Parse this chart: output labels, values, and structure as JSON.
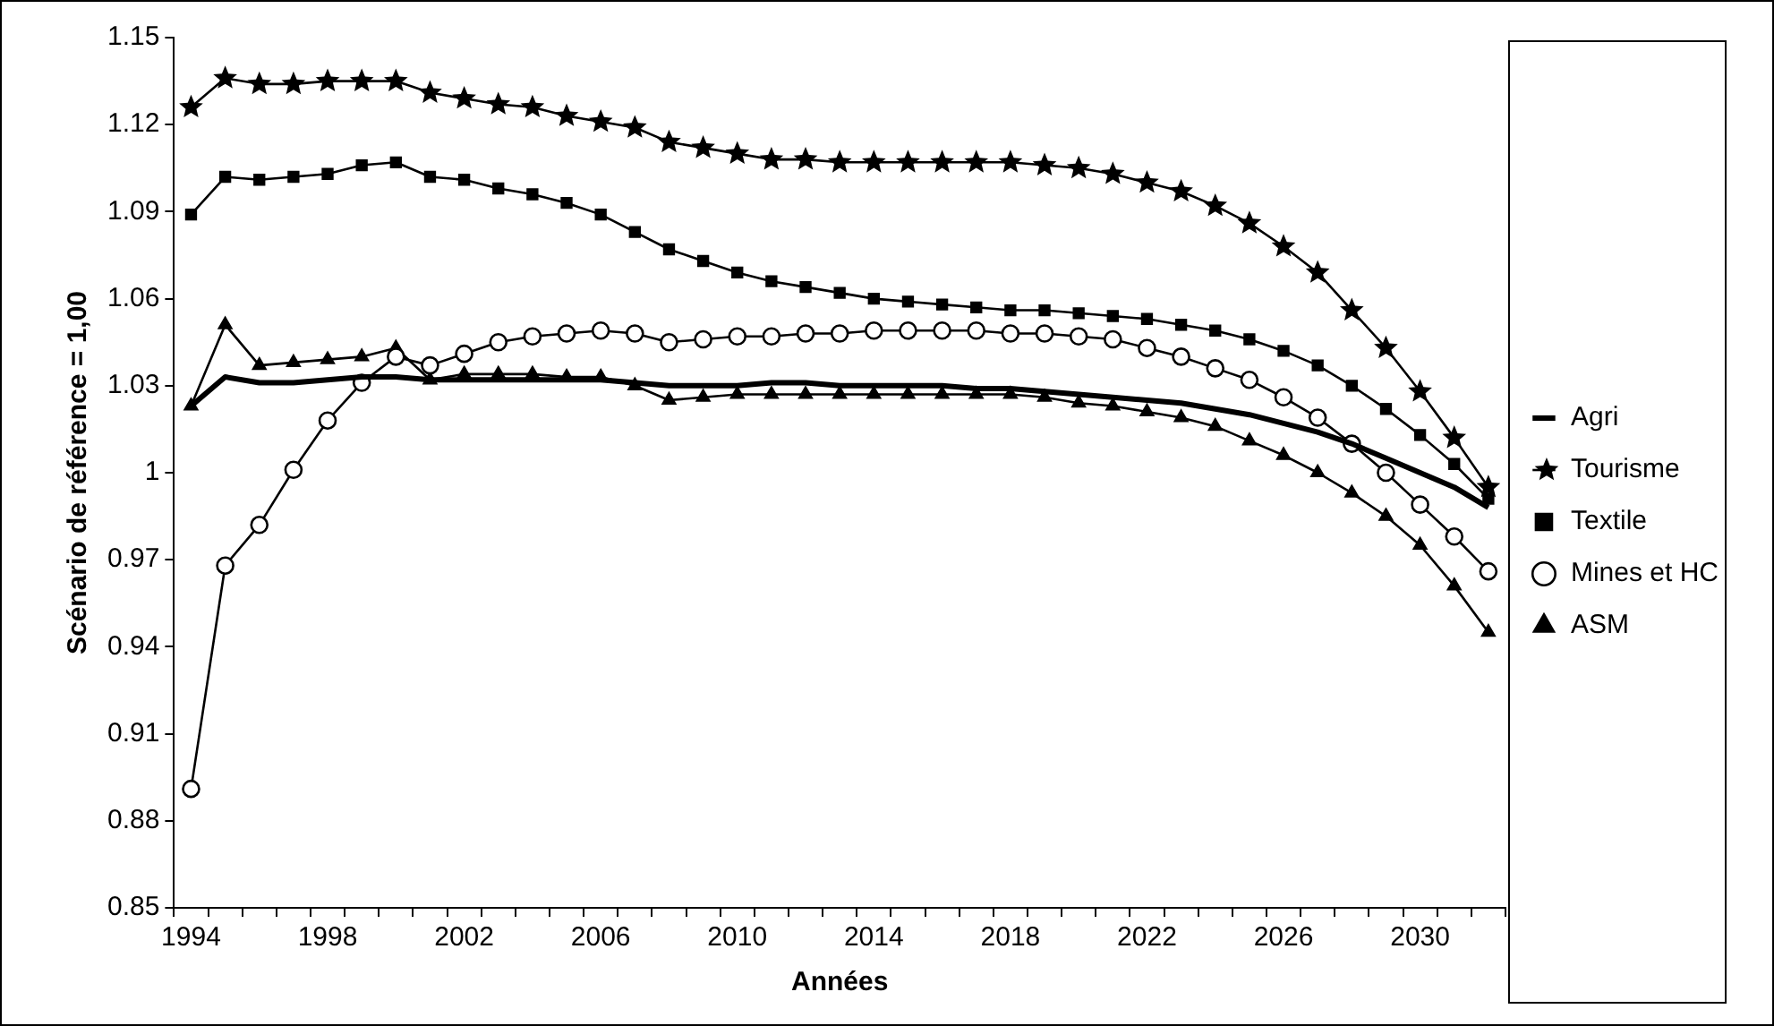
{
  "chart_data": {
    "type": "line",
    "xlabel": "Années",
    "ylabel": "Scénario de référence = 1,00",
    "categories": [
      "1994",
      null,
      null,
      null,
      "1998",
      null,
      null,
      null,
      "2002",
      null,
      null,
      null,
      "2006",
      null,
      null,
      null,
      "2010",
      null,
      null,
      null,
      "2014",
      null,
      null,
      null,
      "2018",
      null,
      null,
      null,
      "2022",
      null,
      null,
      null,
      "2026",
      null,
      null,
      null,
      "2030",
      null,
      null
    ],
    "ylim": [
      0.85,
      1.15
    ],
    "yticks": [
      0.85,
      0.88,
      0.91,
      0.94,
      0.97,
      1,
      1.03,
      1.06,
      1.09,
      1.12,
      1.15
    ],
    "grid": false,
    "legend": "right",
    "series": [
      {
        "name": "Agri",
        "color": "#000000",
        "marker": "none",
        "values": [
          1.023,
          1.033,
          1.031,
          1.031,
          1.032,
          1.033,
          1.033,
          1.032,
          1.032,
          1.032,
          1.032,
          1.032,
          1.032,
          1.031,
          1.03,
          1.03,
          1.03,
          1.031,
          1.031,
          1.03,
          1.03,
          1.03,
          1.03,
          1.029,
          1.029,
          1.028,
          1.027,
          1.026,
          1.025,
          1.024,
          1.022,
          1.02,
          1.017,
          1.014,
          1.01,
          1.005,
          1.0,
          0.995,
          0.988
        ]
      },
      {
        "name": "Tourisme",
        "color": "#000000",
        "marker": "star",
        "values": [
          1.126,
          1.136,
          1.134,
          1.134,
          1.135,
          1.135,
          1.135,
          1.131,
          1.129,
          1.127,
          1.126,
          1.123,
          1.121,
          1.119,
          1.114,
          1.112,
          1.11,
          1.108,
          1.108,
          1.107,
          1.107,
          1.107,
          1.107,
          1.107,
          1.107,
          1.106,
          1.105,
          1.103,
          1.1,
          1.097,
          1.092,
          1.086,
          1.078,
          1.069,
          1.056,
          1.043,
          1.028,
          1.012,
          0.995
        ]
      },
      {
        "name": "Textile",
        "color": "#000000",
        "marker": "square",
        "values": [
          1.089,
          1.102,
          1.101,
          1.102,
          1.103,
          1.106,
          1.107,
          1.102,
          1.101,
          1.098,
          1.096,
          1.093,
          1.089,
          1.083,
          1.077,
          1.073,
          1.069,
          1.066,
          1.064,
          1.062,
          1.06,
          1.059,
          1.058,
          1.057,
          1.056,
          1.056,
          1.055,
          1.054,
          1.053,
          1.051,
          1.049,
          1.046,
          1.042,
          1.037,
          1.03,
          1.022,
          1.013,
          1.003,
          0.991
        ]
      },
      {
        "name": "Mines et HC",
        "color": "#000000",
        "marker": "circle",
        "values": [
          0.891,
          0.968,
          0.982,
          1.001,
          1.018,
          1.031,
          1.04,
          1.037,
          1.041,
          1.045,
          1.047,
          1.048,
          1.049,
          1.048,
          1.045,
          1.046,
          1.047,
          1.047,
          1.048,
          1.048,
          1.049,
          1.049,
          1.049,
          1.049,
          1.048,
          1.048,
          1.047,
          1.046,
          1.043,
          1.04,
          1.036,
          1.032,
          1.026,
          1.019,
          1.01,
          1.0,
          0.989,
          0.978,
          0.966
        ]
      },
      {
        "name": "ASM",
        "color": "#000000",
        "marker": "triangle",
        "values": [
          1.023,
          1.051,
          1.037,
          1.038,
          1.039,
          1.04,
          1.043,
          1.032,
          1.034,
          1.034,
          1.034,
          1.033,
          1.033,
          1.03,
          1.025,
          1.026,
          1.027,
          1.027,
          1.027,
          1.027,
          1.027,
          1.027,
          1.027,
          1.027,
          1.027,
          1.026,
          1.024,
          1.023,
          1.021,
          1.019,
          1.016,
          1.011,
          1.006,
          1.0,
          0.993,
          0.985,
          0.975,
          0.961,
          0.945
        ]
      }
    ]
  }
}
